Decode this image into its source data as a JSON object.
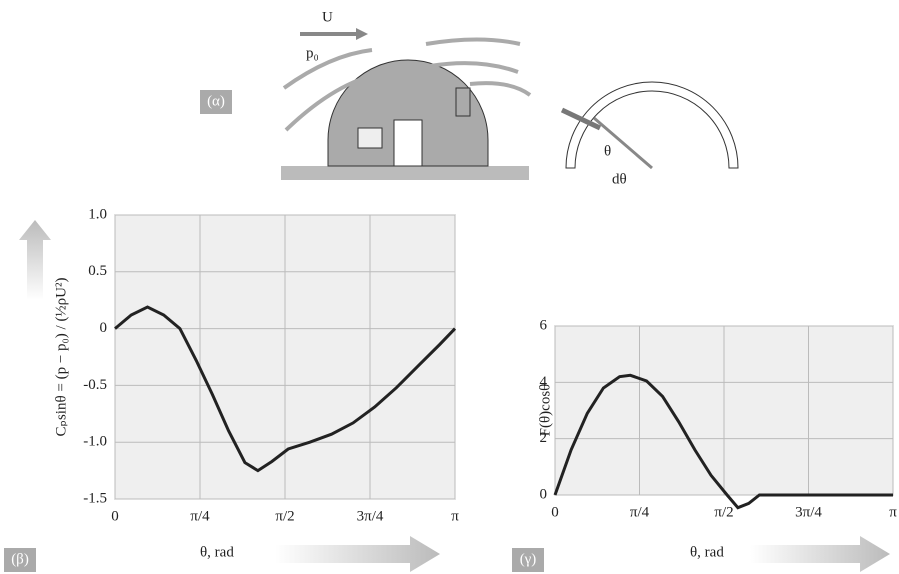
{
  "panel_labels": [
    "(α)",
    "(β)",
    "(γ)"
  ],
  "diagram": {
    "velocity": "U",
    "pressure": "p₀",
    "angle": "θ",
    "angle_increment": "dθ"
  },
  "chart_data": [
    {
      "type": "line",
      "y_label": "Cₚsinθ = (p − p₀) / (½ρU²)",
      "x_label": "θ, rad",
      "color": "#222222",
      "grid": true,
      "x": [
        0,
        0.15,
        0.3,
        0.45,
        0.6,
        0.75,
        0.9,
        1.05,
        1.2,
        1.32,
        1.45,
        1.6,
        1.8,
        2.0,
        2.2,
        2.4,
        2.6,
        2.8,
        3.0,
        3.1416
      ],
      "values": [
        0,
        0.12,
        0.19,
        0.12,
        0,
        -0.28,
        -0.58,
        -0.9,
        -1.18,
        -1.25,
        -1.17,
        -1.06,
        -1.0,
        -0.93,
        -0.83,
        -0.69,
        -0.52,
        -0.33,
        -0.14,
        0
      ],
      "xlim": [
        0,
        3.1416
      ],
      "ylim": [
        -1.5,
        1
      ],
      "xticks": [
        0,
        {
          "value": 0.7854,
          "label": "π/4"
        },
        {
          "value": 1.5708,
          "label": "π/2"
        },
        {
          "value": 2.3562,
          "label": "3π/4"
        },
        {
          "value": 3.1416,
          "label": "π"
        }
      ],
      "yticks": [
        -1.5,
        {
          "value": -1,
          "label": "-1.0"
        },
        -0.5,
        0,
        0.5,
        {
          "value": 1,
          "label": "1.0"
        }
      ]
    },
    {
      "type": "line",
      "y_label": "F(θ)cosθ",
      "x_label": "θ, rad",
      "color": "#222222",
      "grid": true,
      "x": [
        0,
        0.15,
        0.3,
        0.45,
        0.6,
        0.7,
        0.85,
        1.0,
        1.15,
        1.3,
        1.45,
        1.6,
        1.7,
        1.8,
        1.9,
        2.2,
        2.6,
        3.0,
        3.1416
      ],
      "values": [
        0,
        1.6,
        2.9,
        3.8,
        4.2,
        4.25,
        4.05,
        3.5,
        2.6,
        1.6,
        0.7,
        0,
        -0.45,
        -0.3,
        0,
        0,
        0,
        0,
        0
      ],
      "xlim": [
        0,
        3.1416
      ],
      "ylim": [
        0,
        6
      ],
      "xticks": [
        0,
        {
          "value": 0.7854,
          "label": "π/4"
        },
        {
          "value": 1.5708,
          "label": "π/2"
        },
        {
          "value": 2.3562,
          "label": "3π/4"
        },
        {
          "value": 3.1416,
          "label": "π"
        }
      ],
      "yticks": [
        0,
        2,
        4,
        6
      ]
    }
  ]
}
